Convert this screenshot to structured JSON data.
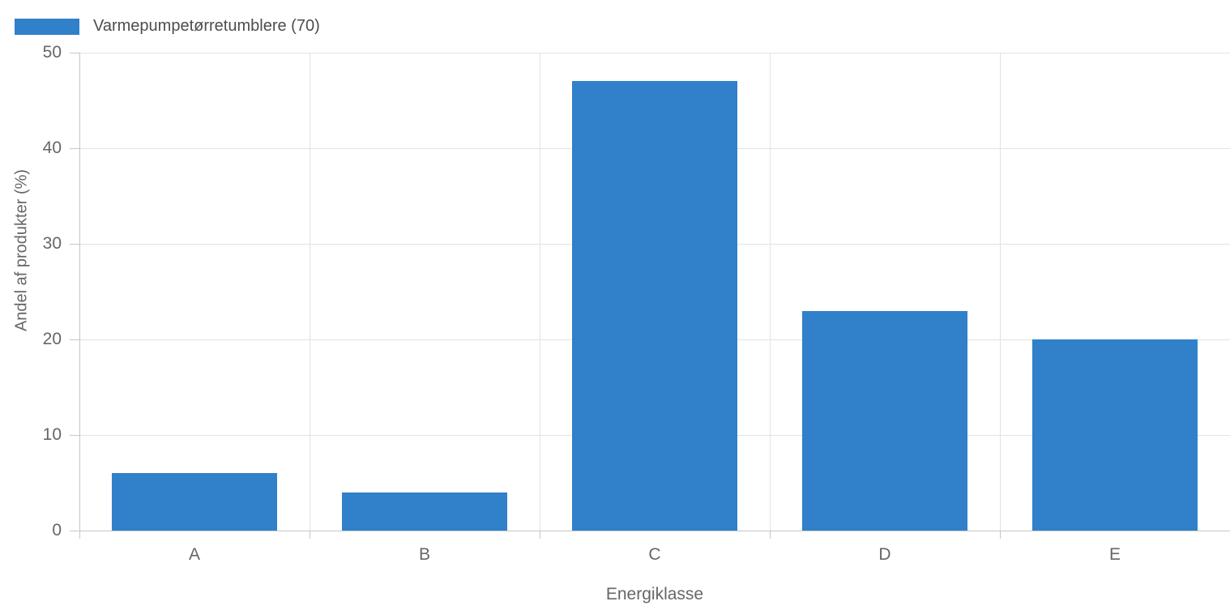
{
  "chart_data": {
    "type": "bar",
    "title": "",
    "legend": {
      "label": "Varmepumpetørretumblere (70)",
      "position": "top-left",
      "count_shown": 70
    },
    "categories": [
      "A",
      "B",
      "C",
      "D",
      "E"
    ],
    "series": [
      {
        "name": "Varmepumpetørretumblere (70)",
        "values": [
          6,
          4,
          47,
          23,
          20
        ]
      }
    ],
    "xlabel": "Energiklasse",
    "ylabel": "Andel af produkter (%)",
    "ylim": [
      0,
      50
    ],
    "yticks": [
      0,
      10,
      20,
      30,
      40,
      50
    ],
    "grid": true,
    "colors": {
      "bar": "#3080CA",
      "grid": "#E2E2E2",
      "axis": "#C6C6C6",
      "tick_text": "#666666",
      "legend_text": "#4D4D4D",
      "background": "#FFFFFF"
    }
  }
}
